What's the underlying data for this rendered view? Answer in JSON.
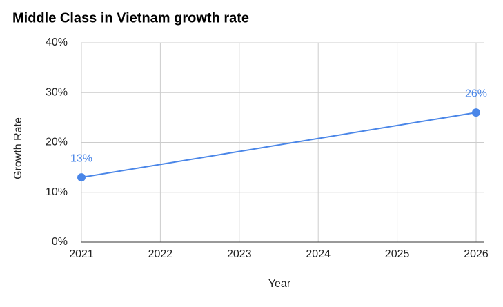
{
  "chart_data": {
    "type": "line",
    "title": "Middle Class in Vietnam growth rate",
    "x_label": "Year",
    "y_label": "Growth Rate",
    "x": [
      2021,
      2026
    ],
    "values": [
      13,
      26
    ],
    "value_labels": [
      "13%",
      "26%"
    ],
    "color": "#4a86e8",
    "xlim": [
      2021,
      2026
    ],
    "xticks": [
      2021,
      2022,
      2023,
      2024,
      2025,
      2026
    ],
    "ylim": [
      0,
      40
    ],
    "yticks": [
      {
        "value": 0,
        "label": "0%"
      },
      {
        "value": 10,
        "label": "10%"
      },
      {
        "value": 20,
        "label": "20%"
      },
      {
        "value": 30,
        "label": "30%"
      },
      {
        "value": 40,
        "label": "40%"
      }
    ],
    "grid": true
  }
}
